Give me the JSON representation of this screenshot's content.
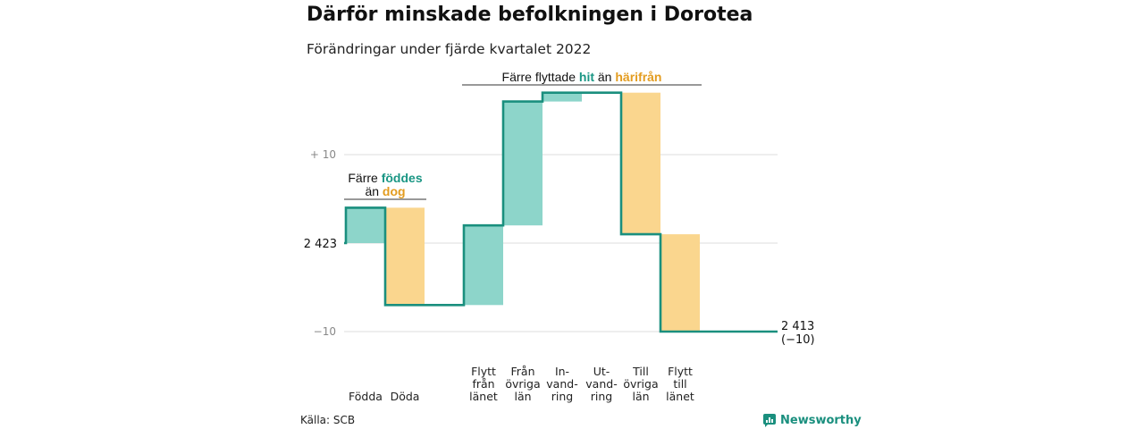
{
  "header": {
    "title": "Därför minskade befolkningen i Dorotea",
    "subtitle": "Förändringar under fjärde kvartalet 2022"
  },
  "footer": {
    "source": "Källa: SCB",
    "brand": "Newsworthy",
    "brand_icon": "bar-chart-speech-icon"
  },
  "colors": {
    "increase": "#8dd5ca",
    "decrease": "#fad68e",
    "line": "#1a8f7e",
    "grid": "#dddddd",
    "accent_teal": "#1a9684",
    "accent_gold": "#e39c1f"
  },
  "chart_data": {
    "type": "waterfall",
    "title": "Därför minskade befolkningen i Dorotea",
    "subtitle": "Förändringar under fjärde kvartalet 2022",
    "start_value": 2423,
    "end_value": 2413,
    "start_label": "2 423",
    "end_label": "2 413",
    "end_change_label": "(−10)",
    "y_ticks": [
      {
        "value": 10,
        "label": "+ 10"
      },
      {
        "value": -10,
        "label": "−10"
      }
    ],
    "ylim": [
      -10,
      17
    ],
    "categories": [
      {
        "label": [
          "Födda"
        ],
        "change": 4
      },
      {
        "label": [
          "Döda"
        ],
        "change": -11
      },
      {
        "label": [
          "Flytt",
          "från",
          "länet"
        ],
        "change": 9
      },
      {
        "label": [
          "Från",
          "övriga",
          "län"
        ],
        "change": 14
      },
      {
        "label": [
          "In-",
          "vand-",
          "ring"
        ],
        "change": 1
      },
      {
        "label": [
          "Ut-",
          "vand-",
          "ring"
        ],
        "change": 0
      },
      {
        "label": [
          "Till",
          "övriga",
          "län"
        ],
        "change": -16
      },
      {
        "label": [
          "Flytt",
          "till",
          "länet"
        ],
        "change": -11
      }
    ],
    "annotations": [
      {
        "group": [
          0,
          1
        ],
        "parts": [
          [
            {
              "text": "Färre ",
              "style": "plain"
            },
            {
              "text": "föddes",
              "style": "teal"
            }
          ],
          [
            {
              "text": "än ",
              "style": "plain"
            },
            {
              "text": "dog",
              "style": "gold"
            }
          ]
        ]
      },
      {
        "group": [
          2,
          7
        ],
        "parts": [
          [
            {
              "text": "Färre flyttade ",
              "style": "plain"
            },
            {
              "text": "hit",
              "style": "teal"
            },
            {
              "text": " än ",
              "style": "plain"
            },
            {
              "text": "härifrån",
              "style": "gold"
            }
          ]
        ]
      }
    ]
  }
}
